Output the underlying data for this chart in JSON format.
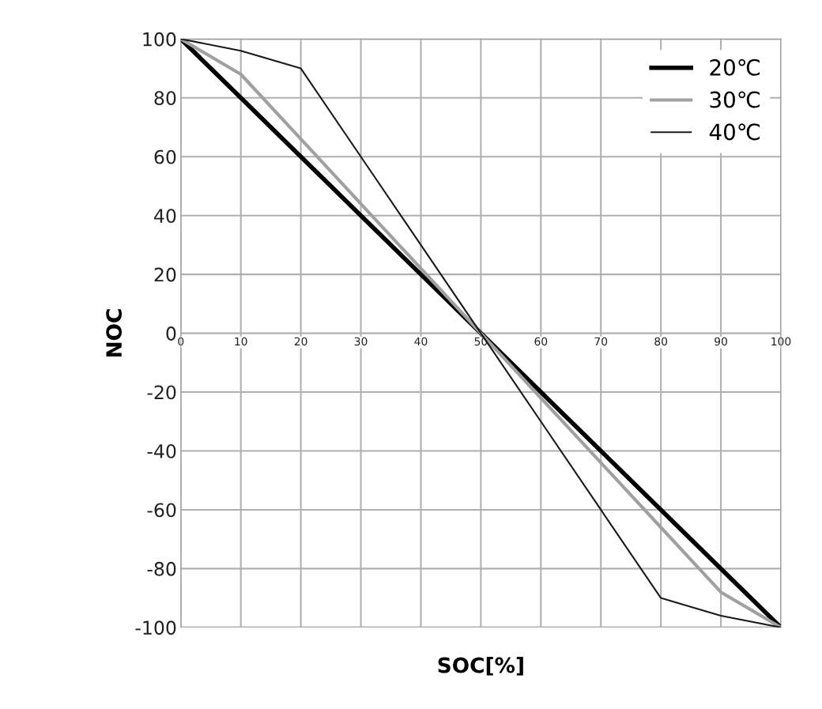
{
  "chart_data": {
    "type": "line",
    "xlabel": "SOC[%]",
    "ylabel": "NOC",
    "x": [
      0,
      10,
      20,
      30,
      40,
      50,
      60,
      70,
      80,
      90,
      100
    ],
    "series": [
      {
        "name": "20℃",
        "color": "#000000",
        "values": [
          100,
          80,
          60,
          40,
          20,
          0,
          -20,
          -40,
          -60,
          -80,
          -100
        ]
      },
      {
        "name": "30℃",
        "color": "#a0a0a0",
        "values": [
          100,
          88,
          66,
          44,
          22,
          0,
          -22,
          -44,
          -66,
          -88,
          -100
        ]
      },
      {
        "name": "40℃",
        "color": "#1a1a1a",
        "values": [
          100,
          96,
          90,
          60,
          30,
          0,
          -30,
          -60,
          -90,
          -96,
          -100
        ]
      }
    ],
    "xlim": [
      0,
      100
    ],
    "xticks": [
      0,
      10,
      20,
      30,
      40,
      50,
      60,
      70,
      80,
      90,
      100
    ],
    "ylim": [
      -100,
      100
    ],
    "yticks": [
      -100,
      -80,
      -60,
      -40,
      -20,
      0,
      20,
      40,
      60,
      80,
      100
    ],
    "grid": true,
    "legend": "top right",
    "marker": "none",
    "line_style": "solid"
  }
}
